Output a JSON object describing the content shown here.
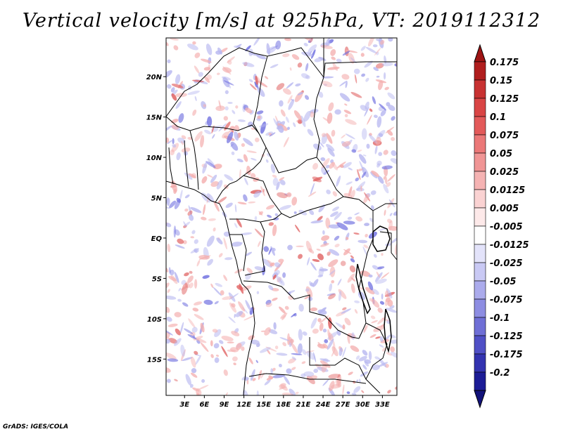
{
  "title": "Vertical velocity [m/s] at 925hPa, VT: 2019112312",
  "footer": "GrADS: IGES/COLA",
  "map": {
    "lat_labels": [
      "20N",
      "15N",
      "10N",
      "5N",
      "EQ",
      "5S",
      "10S",
      "15S"
    ],
    "lat_values": [
      20,
      15,
      10,
      5,
      0,
      -5,
      -10,
      -15
    ],
    "lon_labels": [
      "3E",
      "6E",
      "9E",
      "12E",
      "15E",
      "18E",
      "21E",
      "24E",
      "27E",
      "30E",
      "33E"
    ],
    "lon_values": [
      3,
      6,
      9,
      12,
      15,
      18,
      21,
      24,
      27,
      30,
      33
    ],
    "extent": {
      "lon_min": 0.2,
      "lon_max": 35.2,
      "lat_min": -19.5,
      "lat_max": 24.8
    }
  },
  "colorbar": {
    "labels": [
      "0.175",
      "0.15",
      "0.125",
      "0.1",
      "0.075",
      "0.05",
      "0.025",
      "0.0125",
      "0.005",
      "-0.005",
      "-0.0125",
      "-0.025",
      "-0.05",
      "-0.075",
      "-0.1",
      "-0.125",
      "-0.175",
      "-0.2"
    ],
    "colors": [
      "#b01e1e",
      "#c83232",
      "#d94545",
      "#e35a5a",
      "#eb7878",
      "#f09595",
      "#f5b3b3",
      "#fad2d2",
      "#fde9e9",
      "#ffffff",
      "#e3e3fa",
      "#c9c9f4",
      "#ababec",
      "#8d8de2",
      "#6f6fd6",
      "#5050c6",
      "#3333b0",
      "#1c1c96"
    ],
    "top_color": "#9e1414",
    "bottom_color": "#12127a"
  },
  "colors": {
    "red": "#e06060",
    "blue": "#7070e0",
    "light_red": "#f4b0b0",
    "light_blue": "#b8b8f0",
    "border": "#000000"
  }
}
